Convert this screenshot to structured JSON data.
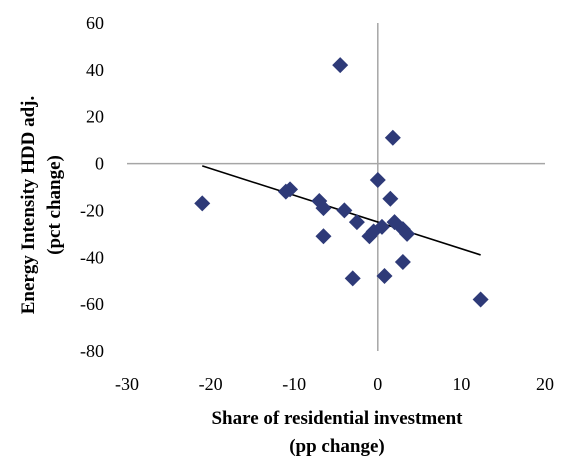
{
  "chart_data": {
    "type": "scatter",
    "xlabel_lines": [
      "Share of residential investment",
      "(pp change)"
    ],
    "ylabel_lines": [
      "Energy Intensity HDD adj.",
      "(pct change)"
    ],
    "xlim": [
      -30,
      20
    ],
    "ylim": [
      -80,
      60
    ],
    "x_ticks": [
      -30,
      -20,
      -10,
      0,
      10,
      20
    ],
    "y_ticks": [
      -80,
      -60,
      -40,
      -20,
      0,
      20,
      40,
      60
    ],
    "x_tick_labels": [
      "-30",
      "-20",
      "-10",
      "0",
      "10",
      "20"
    ],
    "y_tick_labels": [
      "-80",
      "-60",
      "-40",
      "-20",
      "0",
      "20",
      "40",
      "60"
    ],
    "points": [
      {
        "x": -21,
        "y": -17
      },
      {
        "x": -11,
        "y": -12
      },
      {
        "x": -10.5,
        "y": -11
      },
      {
        "x": -7,
        "y": -16
      },
      {
        "x": -6.5,
        "y": -19
      },
      {
        "x": -6.5,
        "y": -31
      },
      {
        "x": -4.5,
        "y": 42
      },
      {
        "x": -4,
        "y": -20
      },
      {
        "x": -3,
        "y": -49
      },
      {
        "x": -2.5,
        "y": -25
      },
      {
        "x": -1,
        "y": -31
      },
      {
        "x": -0.5,
        "y": -29
      },
      {
        "x": 0,
        "y": -7
      },
      {
        "x": 0.5,
        "y": -27
      },
      {
        "x": 0.8,
        "y": -48
      },
      {
        "x": 1.5,
        "y": -15
      },
      {
        "x": 1.8,
        "y": 11
      },
      {
        "x": 2,
        "y": -25
      },
      {
        "x": 3,
        "y": -28
      },
      {
        "x": 3.5,
        "y": -30
      },
      {
        "x": 3,
        "y": -42
      },
      {
        "x": 12.3,
        "y": -58
      }
    ],
    "trendline": {
      "x1": -21,
      "y1": -1,
      "x2": 12.3,
      "y2": -39
    },
    "marker_color": "#2e3a78",
    "trendline_color": "#000000",
    "axis_color": "#a6a6a6"
  }
}
